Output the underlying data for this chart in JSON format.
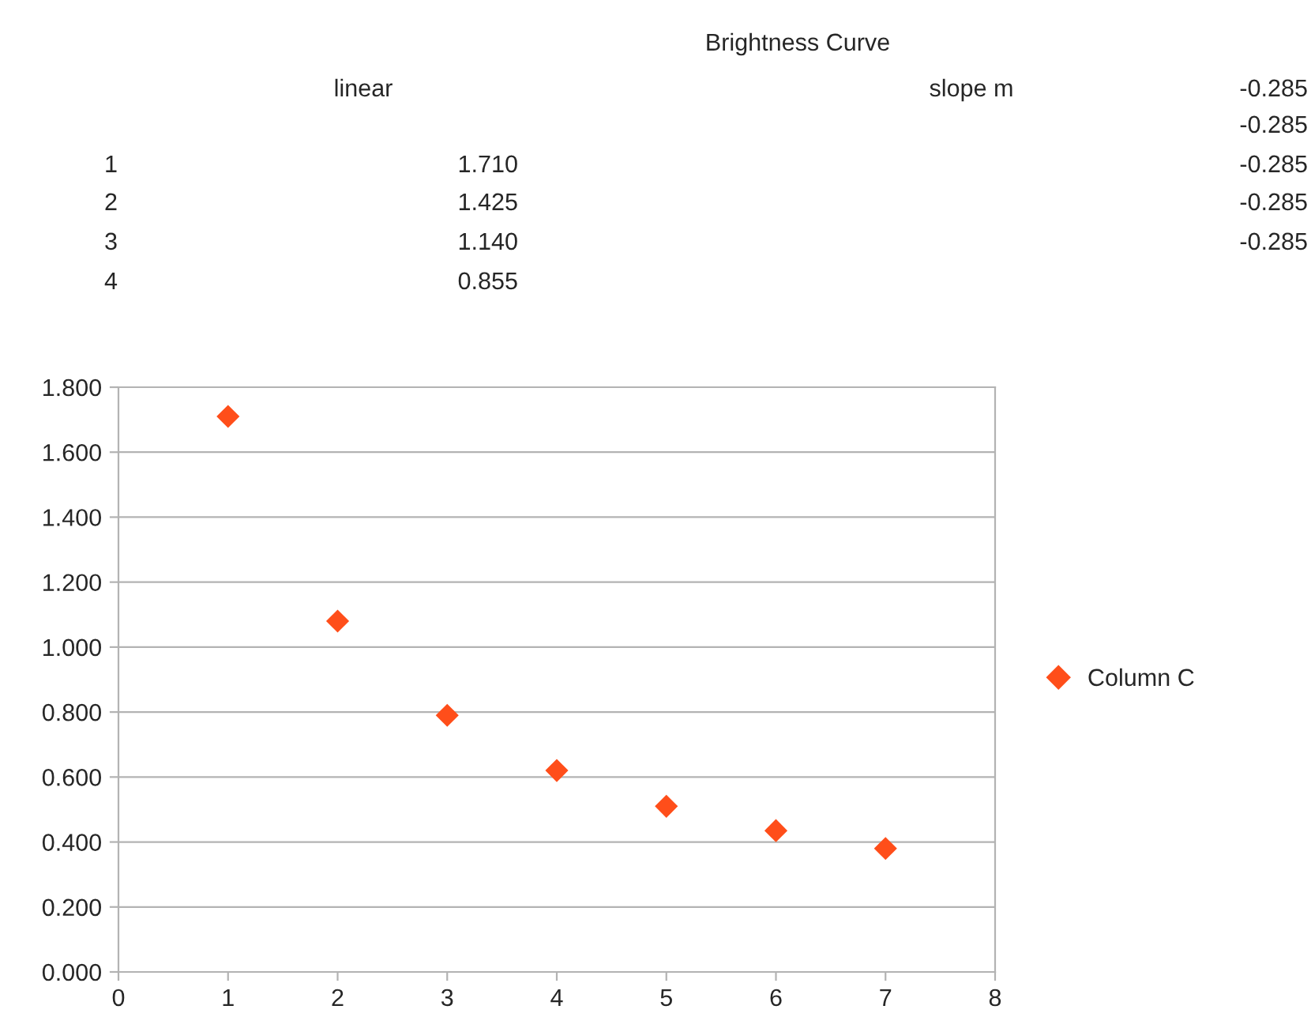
{
  "chart_data": {
    "type": "scatter",
    "title": "Brightness Curve",
    "x": [
      1,
      2,
      3,
      4,
      5,
      6,
      7
    ],
    "series": [
      {
        "name": "Column C",
        "color": "#ff4e1a",
        "values": [
          1.71,
          1.08,
          0.79,
          0.62,
          0.51,
          0.435,
          0.38
        ]
      }
    ],
    "xlim": [
      0,
      8
    ],
    "xticks": [
      0,
      1,
      2,
      3,
      4,
      5,
      6,
      7,
      8
    ],
    "ylim": [
      0,
      1.8
    ],
    "yticks": [
      {
        "value": 0,
        "label": "0.000"
      },
      {
        "value": 0.2,
        "label": "0.200"
      },
      {
        "value": 0.4,
        "label": "0.400"
      },
      {
        "value": 0.6,
        "label": "0.600"
      },
      {
        "value": 0.8,
        "label": "0.800"
      },
      {
        "value": 1.0,
        "label": "1.000"
      },
      {
        "value": 1.2,
        "label": "1.200"
      },
      {
        "value": 1.4,
        "label": "1.400"
      },
      {
        "value": 1.6,
        "label": "1.600"
      },
      {
        "value": 1.8,
        "label": "1.800"
      }
    ],
    "grid": "y",
    "legend": "right",
    "marker": "diamond",
    "annotations": [
      "linear",
      "slope m",
      "-0.285",
      "-0.285",
      "1",
      "1.710",
      "-0.285",
      "2",
      "1.425",
      "-0.285",
      "3",
      "1.140",
      "-0.285",
      "4",
      "0.855"
    ]
  }
}
